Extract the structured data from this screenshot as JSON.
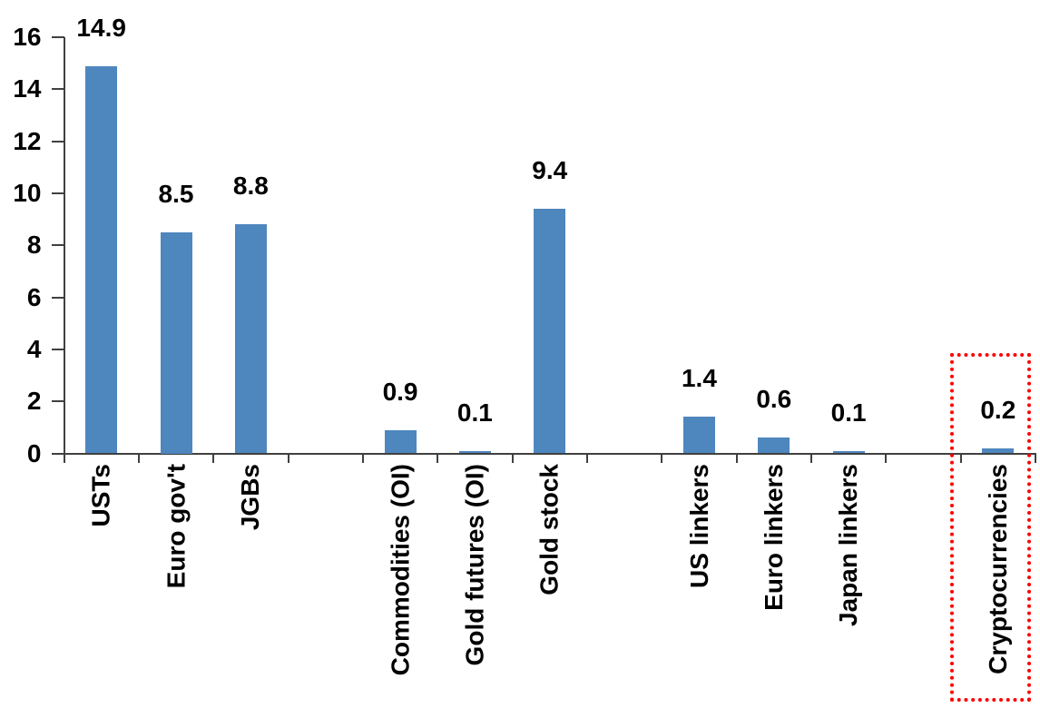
{
  "chart_data": {
    "type": "bar",
    "title": "",
    "xlabel": "",
    "ylabel": "",
    "categories": [
      "USTs",
      "Euro gov't",
      "JGBs",
      "Commodities (OI)",
      "Gold futures (OI)",
      "Gold stock",
      "US linkers",
      "Euro linkers",
      "Japan linkers",
      "Cryptocurrencies"
    ],
    "values": [
      14.9,
      8.5,
      8.8,
      0.9,
      0.1,
      9.4,
      1.4,
      0.6,
      0.1,
      0.2
    ],
    "data_labels": [
      "14.9",
      "8.5",
      "8.8",
      "0.9",
      "0.1",
      "9.4",
      "1.4",
      "0.6",
      "0.1",
      "0.2"
    ],
    "slot_index": [
      0,
      1,
      2,
      4,
      5,
      6,
      8,
      9,
      10,
      12
    ],
    "num_slots": 13,
    "group_gaps_after": [
      "JGBs",
      "Gold stock",
      "Japan linkers"
    ],
    "ylim": [
      0,
      16
    ],
    "yticks": [
      "0",
      "2",
      "4",
      "6",
      "8",
      "10",
      "12",
      "14",
      "16"
    ],
    "grid": false,
    "legend_position": "none",
    "bar_color": "#4E86BE",
    "axis_color": "#404040",
    "text_color": "#000000",
    "highlight_box": {
      "category": "Cryptocurrencies",
      "color": "#FF0000",
      "style": "dotted"
    }
  }
}
